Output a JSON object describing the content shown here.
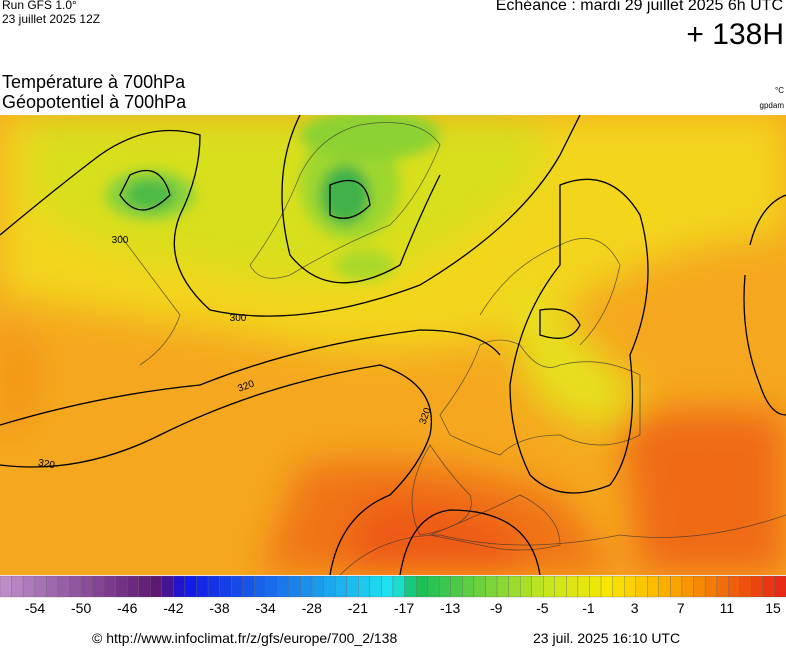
{
  "header": {
    "model": "Run GFS 1.0°",
    "run": "23 juillet 2025 12Z",
    "valid": "Echéance : mardi 29 juillet 2025 6h UTC",
    "lead": "+ 138H"
  },
  "titles": {
    "temperature": "Température à 700hPa",
    "geopotential": "Géopotentiel à 700hPa",
    "temperature_unit": "°C",
    "geopotential_unit": "gpdam"
  },
  "contour_labels": [
    "300",
    "300",
    "320",
    "320",
    "320"
  ],
  "colorbar": {
    "labels": [
      -54,
      -50,
      -46,
      -42,
      -38,
      -34,
      -28,
      -21,
      -17,
      -13,
      -9,
      -5,
      -1,
      3,
      7,
      11,
      15
    ]
  },
  "footer": {
    "source": "© http://www.infoclimat.fr/z/gfs/europe/700_2/138",
    "generated": "23 juil. 2025 16:10 UTC"
  }
}
